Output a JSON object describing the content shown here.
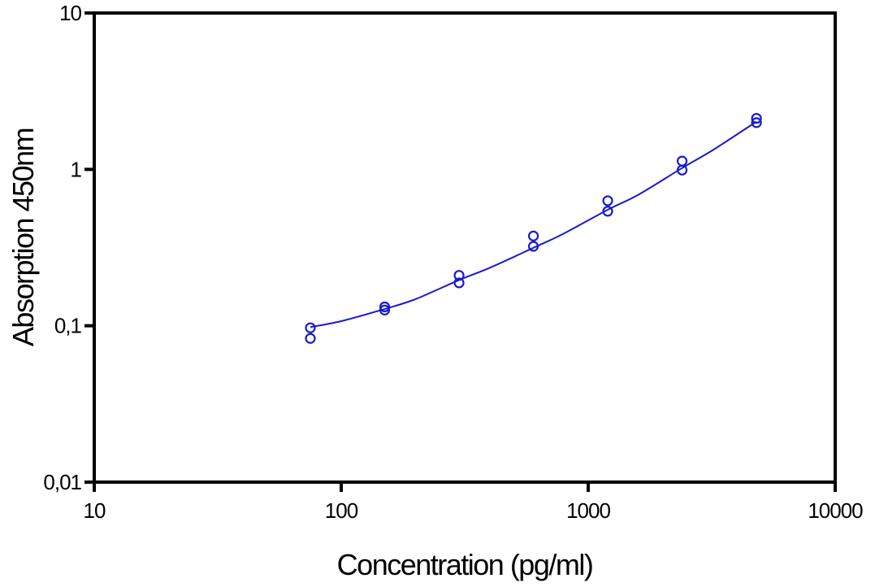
{
  "chart_data": {
    "type": "scatter",
    "title": "",
    "xlabel": "Concentration (pg/ml)",
    "ylabel": "Absorption 450nm",
    "xscale": "log",
    "yscale": "log",
    "xlim": [
      10,
      10000
    ],
    "ylim": [
      0.01,
      10
    ],
    "x_ticks": [
      10,
      100,
      1000,
      10000
    ],
    "x_tick_labels": [
      "10",
      "100",
      "1000",
      "10000"
    ],
    "y_ticks": [
      0.01,
      0.1,
      1,
      10
    ],
    "y_tick_labels": [
      "0,01",
      "0,1",
      "1",
      "10"
    ],
    "grid": false,
    "legend": "none",
    "color": "#1a1acc",
    "series": [
      {
        "kind": "points",
        "marker": "open-circle",
        "x": [
          75,
          75,
          150,
          150,
          300,
          300,
          600,
          600,
          1200,
          1200,
          2400,
          2400,
          4800,
          4800
        ],
        "y": [
          0.097,
          0.083,
          0.132,
          0.126,
          0.21,
          0.188,
          0.375,
          0.322,
          0.63,
          0.54,
          1.13,
          0.99,
          2.12,
          1.99
        ]
      },
      {
        "kind": "fit-line",
        "x": [
          75,
          100,
          150,
          200,
          300,
          400,
          600,
          800,
          1200,
          1600,
          2400,
          3200,
          4800
        ],
        "y": [
          0.098,
          0.107,
          0.128,
          0.148,
          0.196,
          0.235,
          0.315,
          0.39,
          0.552,
          0.69,
          1.02,
          1.33,
          2.02
        ]
      }
    ]
  }
}
